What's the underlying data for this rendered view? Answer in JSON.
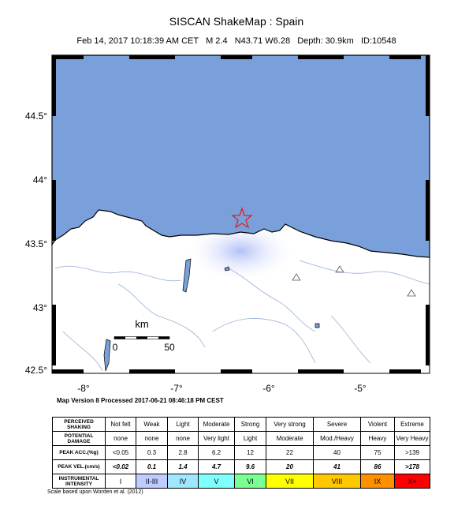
{
  "header": {
    "title": "SISCAN ShakeMap : Spain",
    "subtitle": "Feb 14, 2017 10:18:39 AM CET   M 2.4   N43.71 W6.28   Depth: 30.9km   ID:10548"
  },
  "map": {
    "lat_labels": [
      "44.5°",
      "44°",
      "43.5°",
      "43°",
      "42.5°"
    ],
    "lon_labels": [
      "-8°",
      "-7°",
      "-6°",
      "-5°"
    ],
    "scale_label": "km",
    "scale_ticks": [
      "0",
      "50"
    ],
    "version_note": "Map Version 8 Processed 2017-06-21 08:46:18 PM CEST"
  },
  "table": {
    "rows": [
      [
        "PERCEIVED SHAKING",
        "Not felt",
        "Weak",
        "Light",
        "Moderate",
        "Strong",
        "Very strong",
        "Severe",
        "Violent",
        "Extreme"
      ],
      [
        "POTENTIAL DAMAGE",
        "none",
        "none",
        "none",
        "Very light",
        "Light",
        "Moderate",
        "Mod./Heavy",
        "Heavy",
        "Very Heavy"
      ],
      [
        "PEAK ACC.(%g)",
        "<0.05",
        "0.3",
        "2.8",
        "6.2",
        "12",
        "22",
        "40",
        "75",
        ">139"
      ],
      [
        "PEAK VEL.(cm/s)",
        "<0.02",
        "0.1",
        "1.4",
        "4.7",
        "9.6",
        "20",
        "41",
        "86",
        ">178"
      ],
      [
        "INSTRUMENTAL INTENSITY",
        "I",
        "II-III",
        "IV",
        "V",
        "VI",
        "VII",
        "VIII",
        "IX",
        "X+"
      ]
    ]
  },
  "footnote": "Scale based upon Worden et al. (2012)"
}
